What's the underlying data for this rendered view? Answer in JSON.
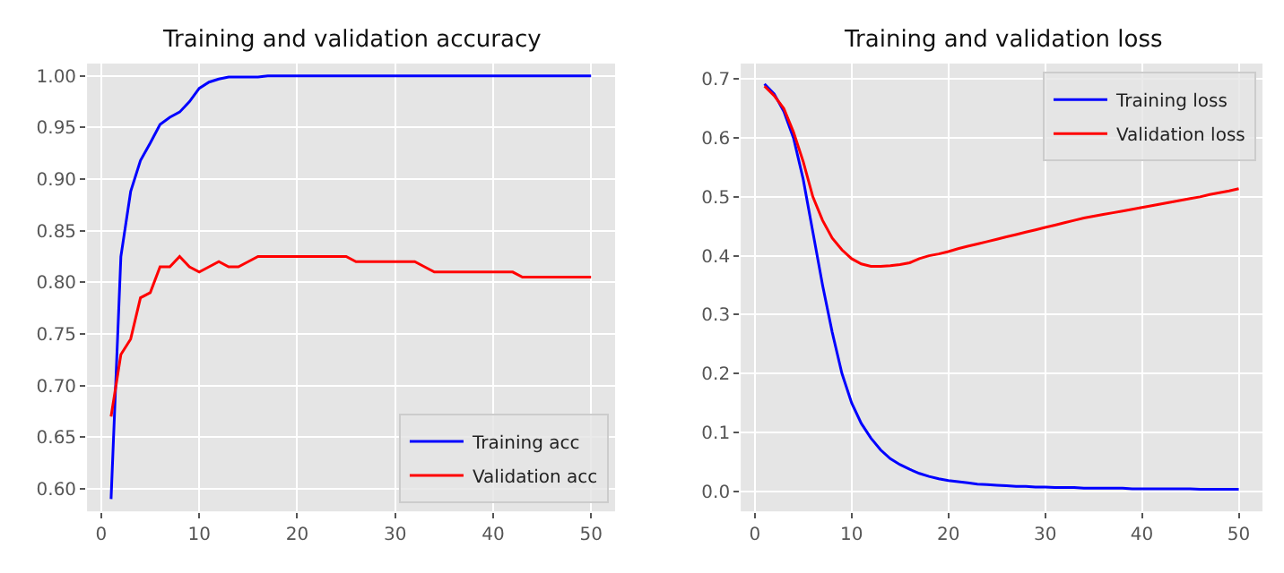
{
  "chart_data": [
    {
      "type": "line",
      "title": "Training and validation accuracy",
      "x": [
        1,
        2,
        3,
        4,
        5,
        6,
        7,
        8,
        9,
        10,
        11,
        12,
        13,
        14,
        15,
        16,
        17,
        18,
        19,
        20,
        21,
        22,
        23,
        24,
        25,
        26,
        27,
        28,
        29,
        30,
        31,
        32,
        33,
        34,
        35,
        36,
        37,
        38,
        39,
        40,
        41,
        42,
        43,
        44,
        45,
        46,
        47,
        48,
        49,
        50
      ],
      "series": [
        {
          "name": "Training acc",
          "color": "#0000ff",
          "values": [
            0.59,
            0.825,
            0.888,
            0.918,
            0.935,
            0.953,
            0.96,
            0.965,
            0.975,
            0.988,
            0.994,
            0.997,
            0.999,
            0.999,
            0.999,
            0.999,
            1.0,
            1.0,
            1.0,
            1.0,
            1.0,
            1.0,
            1.0,
            1.0,
            1.0,
            1.0,
            1.0,
            1.0,
            1.0,
            1.0,
            1.0,
            1.0,
            1.0,
            1.0,
            1.0,
            1.0,
            1.0,
            1.0,
            1.0,
            1.0,
            1.0,
            1.0,
            1.0,
            1.0,
            1.0,
            1.0,
            1.0,
            1.0,
            1.0,
            1.0
          ]
        },
        {
          "name": "Validation acc",
          "color": "#ff0000",
          "values": [
            0.67,
            0.73,
            0.745,
            0.785,
            0.79,
            0.815,
            0.815,
            0.825,
            0.815,
            0.81,
            0.815,
            0.82,
            0.815,
            0.815,
            0.82,
            0.825,
            0.825,
            0.825,
            0.825,
            0.825,
            0.825,
            0.825,
            0.825,
            0.825,
            0.825,
            0.82,
            0.82,
            0.82,
            0.82,
            0.82,
            0.82,
            0.82,
            0.815,
            0.81,
            0.81,
            0.81,
            0.81,
            0.81,
            0.81,
            0.81,
            0.81,
            0.81,
            0.805,
            0.805,
            0.805,
            0.805,
            0.805,
            0.805,
            0.805,
            0.805
          ]
        }
      ],
      "xlim": [
        -1.45,
        52.45
      ],
      "xticks": [
        0,
        10,
        20,
        30,
        40,
        50
      ],
      "ylim": [
        0.578,
        1.012
      ],
      "yticks": [
        {
          "value": 0.6,
          "label": "0.60"
        },
        {
          "value": 0.65,
          "label": "0.65"
        },
        {
          "value": 0.7,
          "label": "0.70"
        },
        {
          "value": 0.75,
          "label": "0.75"
        },
        {
          "value": 0.8,
          "label": "0.80"
        },
        {
          "value": 0.85,
          "label": "0.85"
        },
        {
          "value": 0.9,
          "label": "0.90"
        },
        {
          "value": 0.95,
          "label": "0.95"
        },
        {
          "value": 1.0,
          "label": "1.00"
        }
      ],
      "grid": true,
      "legend": "bottom right"
    },
    {
      "type": "line",
      "title": "Training and validation loss",
      "x": [
        1,
        2,
        3,
        4,
        5,
        6,
        7,
        8,
        9,
        10,
        11,
        12,
        13,
        14,
        15,
        16,
        17,
        18,
        19,
        20,
        21,
        22,
        23,
        24,
        25,
        26,
        27,
        28,
        29,
        30,
        31,
        32,
        33,
        34,
        35,
        36,
        37,
        38,
        39,
        40,
        41,
        42,
        43,
        44,
        45,
        46,
        47,
        48,
        49,
        50
      ],
      "series": [
        {
          "name": "Training loss",
          "color": "#0000ff",
          "values": [
            0.692,
            0.675,
            0.645,
            0.6,
            0.53,
            0.44,
            0.35,
            0.27,
            0.2,
            0.15,
            0.115,
            0.09,
            0.07,
            0.055,
            0.045,
            0.037,
            0.03,
            0.025,
            0.021,
            0.018,
            0.016,
            0.014,
            0.012,
            0.011,
            0.01,
            0.009,
            0.008,
            0.008,
            0.007,
            0.007,
            0.006,
            0.006,
            0.006,
            0.005,
            0.005,
            0.005,
            0.005,
            0.005,
            0.004,
            0.004,
            0.004,
            0.004,
            0.004,
            0.004,
            0.004,
            0.003,
            0.003,
            0.003,
            0.003,
            0.003
          ]
        },
        {
          "name": "Validation loss",
          "color": "#ff0000",
          "values": [
            0.688,
            0.672,
            0.65,
            0.61,
            0.56,
            0.5,
            0.46,
            0.43,
            0.41,
            0.395,
            0.386,
            0.382,
            0.382,
            0.383,
            0.385,
            0.388,
            0.395,
            0.4,
            0.403,
            0.407,
            0.412,
            0.416,
            0.42,
            0.424,
            0.428,
            0.432,
            0.436,
            0.44,
            0.444,
            0.448,
            0.452,
            0.456,
            0.46,
            0.464,
            0.467,
            0.47,
            0.473,
            0.476,
            0.479,
            0.482,
            0.485,
            0.488,
            0.491,
            0.494,
            0.497,
            0.5,
            0.504,
            0.507,
            0.51,
            0.514
          ]
        }
      ],
      "xlim": [
        -1.45,
        52.45
      ],
      "xticks": [
        0,
        10,
        20,
        30,
        40,
        50
      ],
      "ylim": [
        -0.0345,
        0.7265
      ],
      "yticks": [
        {
          "value": 0,
          "label": "0.0"
        },
        {
          "value": 0.1,
          "label": "0.1"
        },
        {
          "value": 0.2,
          "label": "0.2"
        },
        {
          "value": 0.3,
          "label": "0.3"
        },
        {
          "value": 0.4,
          "label": "0.4"
        },
        {
          "value": 0.5,
          "label": "0.5"
        },
        {
          "value": 0.6,
          "label": "0.6"
        },
        {
          "value": 0.7,
          "label": "0.7"
        }
      ],
      "grid": true,
      "legend": "top right"
    }
  ]
}
